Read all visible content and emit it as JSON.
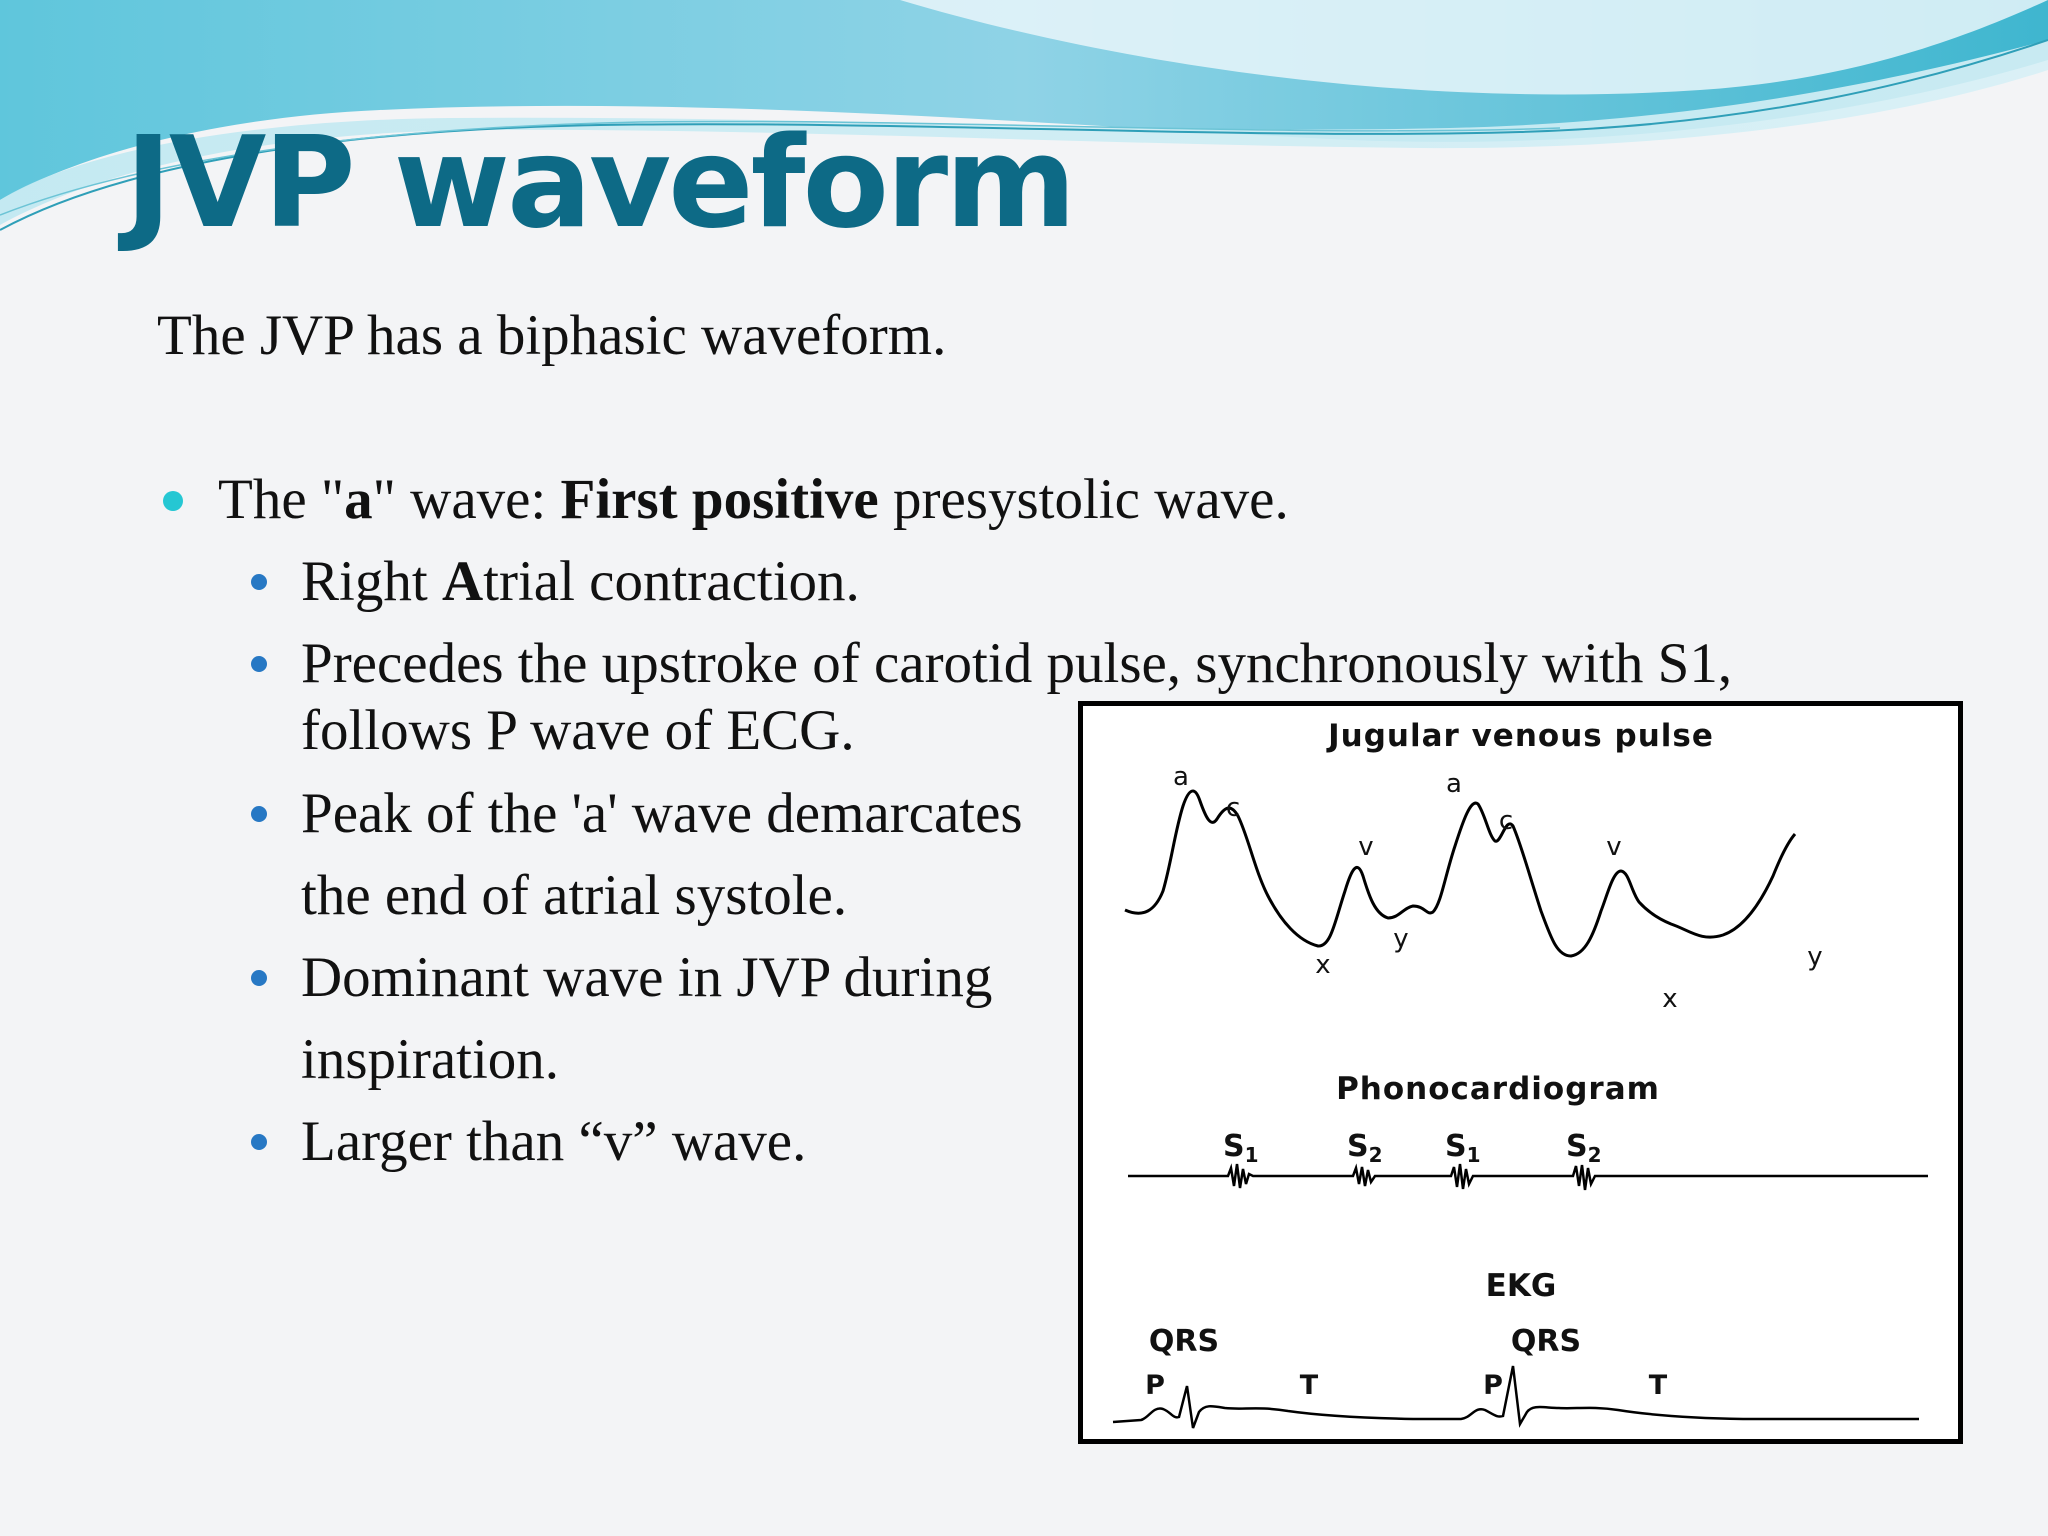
{
  "slide": {
    "title": "JVP waveform",
    "intro": "The JVP has a biphasic waveform.",
    "bullet_a": {
      "pre": "The \"",
      "bold1": "a",
      "mid": "\" wave: ",
      "bold2": "First positive",
      "post": " presystolic wave."
    },
    "sub_bullets": [
      {
        "pre": "Right ",
        "bold": "A",
        "post": "trial contraction."
      },
      {
        "line1": "Precedes the upstroke of carotid pulse, synchronously with S1,",
        "line2": "follows P wave of ECG."
      },
      {
        "line1": "Peak of the 'a' wave demarcates",
        "line2": "the end of atrial systole."
      },
      {
        "line1": "Dominant wave in JVP during",
        "line2": " inspiration."
      },
      {
        "line1": "Larger than “v” wave."
      }
    ]
  },
  "figure": {
    "jvp_title": "Jugular venous pulse",
    "jvp_labels": [
      "a",
      "c",
      "v",
      "x",
      "y",
      "a",
      "c",
      "v",
      "x",
      "y"
    ],
    "pcg_title": "Phonocardiogram",
    "s1": "S",
    "s1_sub": "1",
    "s2": "S",
    "s2_sub": "2",
    "ekg_title": "EKG",
    "qrs": "QRS",
    "p": "P",
    "t": "T"
  }
}
